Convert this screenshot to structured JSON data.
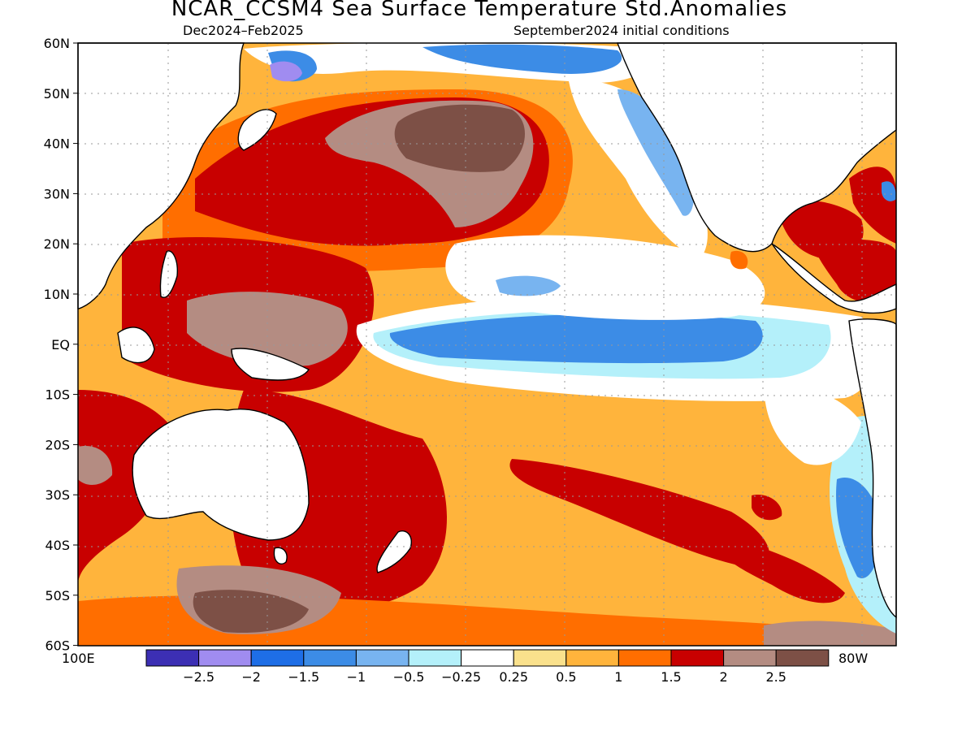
{
  "title": "NCAR_CCSM4 Sea Surface Temperature Std.Anomalies",
  "subtitle_left": "Dec2024–Feb2025",
  "subtitle_right": "September2024 initial conditions",
  "lat_labels": [
    "60N",
    "50N",
    "40N",
    "30N",
    "20N",
    "10N",
    "EQ",
    "10S",
    "20S",
    "30S",
    "40S",
    "50S",
    "60S"
  ],
  "lon_left": "100E",
  "lon_right": "80W",
  "colorbar": {
    "colors": [
      "#3c2fb4",
      "#a08cf0",
      "#1e6ee6",
      "#3c8ce6",
      "#78b4f0",
      "#b4f0fa",
      "#ffffff",
      "#fae18c",
      "#ffb43c",
      "#ff6e00",
      "#c80000",
      "#b48c82",
      "#7d5046"
    ],
    "labels": [
      "−2.5",
      "−2",
      "−1.5",
      "−1",
      "−0.5",
      "−0.25",
      "0.25",
      "0.5",
      "1",
      "1.5",
      "2",
      "2.5"
    ]
  }
}
